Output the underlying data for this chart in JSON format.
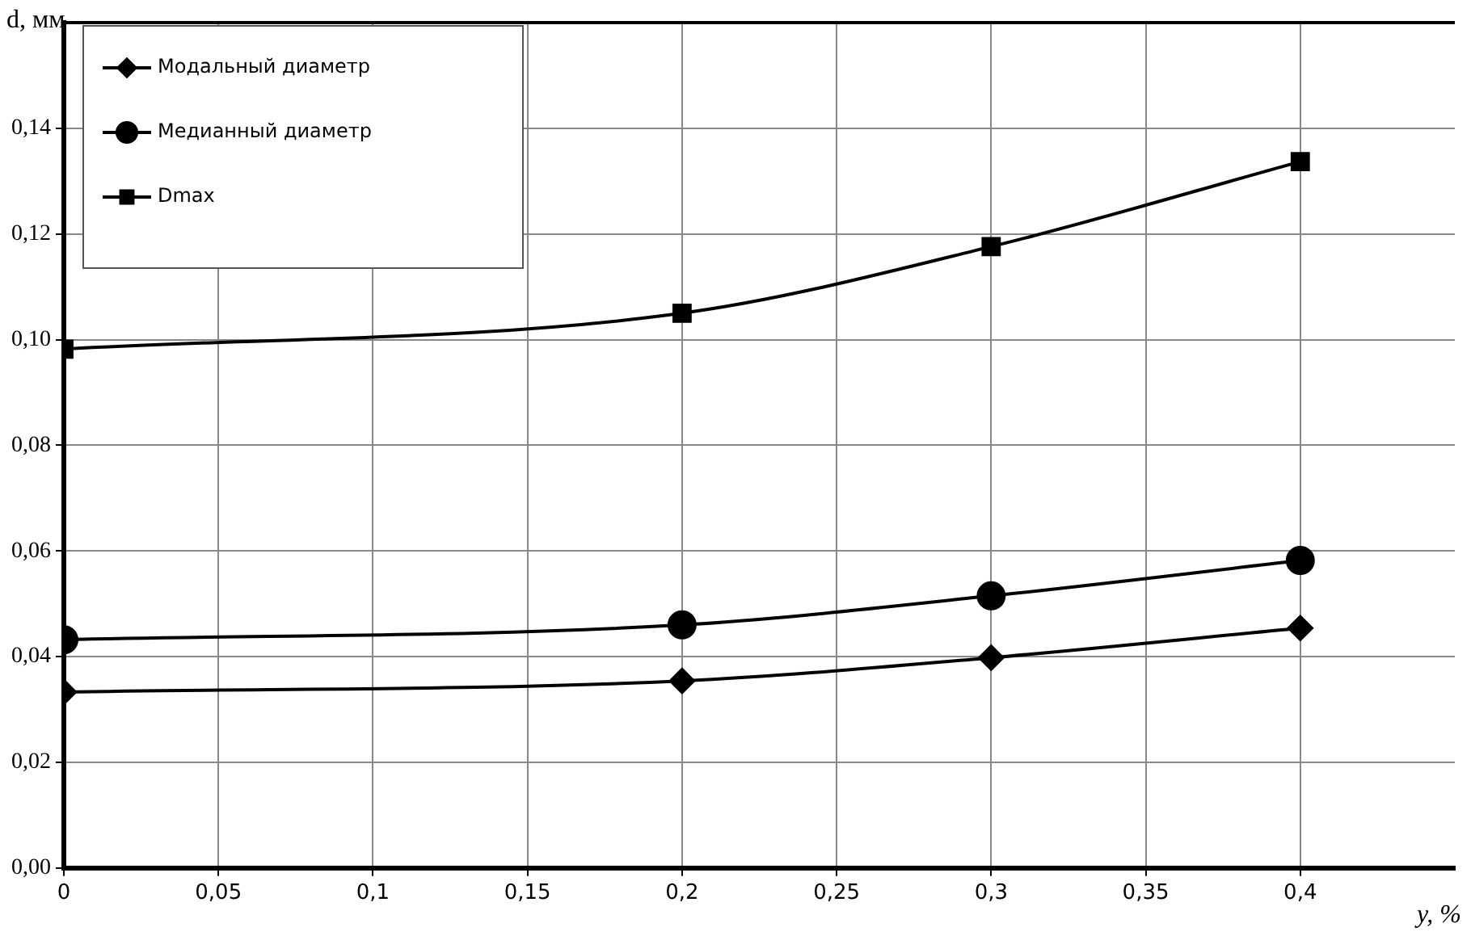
{
  "chart_data": {
    "type": "line",
    "xlabel": "y, %",
    "ylabel": "d, мм",
    "x": [
      0,
      0.2,
      0.3,
      0.4
    ],
    "series": [
      {
        "name": "Модальный диаметр",
        "color": "#000000",
        "marker": "diamond",
        "values": [
          0.0333,
          0.0354,
          0.0398,
          0.0454
        ]
      },
      {
        "name": "Медианный диаметр",
        "color": "#000000",
        "marker": "circle",
        "values": [
          0.0432,
          0.046,
          0.0515,
          0.0582
        ]
      },
      {
        "name": "Dmax",
        "color": "#000000",
        "marker": "square",
        "values": [
          0.0982,
          0.105,
          0.1176,
          0.1337
        ]
      }
    ],
    "xlim": [
      0,
      0.45
    ],
    "xticks": [
      0,
      {
        "value": 0.05,
        "label": "0,05"
      },
      {
        "value": 0.1,
        "label": "0,1"
      },
      {
        "value": 0.15,
        "label": "0,15"
      },
      {
        "value": 0.2,
        "label": "0,2"
      },
      {
        "value": 0.25,
        "label": "0,25"
      },
      {
        "value": 0.3,
        "label": "0,3"
      },
      {
        "value": 0.35,
        "label": "0,35"
      },
      {
        "value": 0.4,
        "label": "0,4"
      }
    ],
    "ylim": [
      0,
      0.16
    ],
    "yticks": [
      {
        "value": 0,
        "label": "0,00"
      },
      {
        "value": 0.02,
        "label": "0,02"
      },
      {
        "value": 0.04,
        "label": "0,04"
      },
      {
        "value": 0.06,
        "label": "0,06"
      },
      {
        "value": 0.08,
        "label": "0,08"
      },
      {
        "value": 0.1,
        "label": "0,10"
      },
      {
        "value": 0.12,
        "label": "0,12"
      },
      {
        "value": 0.14,
        "label": "0,14"
      }
    ],
    "grid": true,
    "legend": "top left",
    "line_style": "solid"
  }
}
